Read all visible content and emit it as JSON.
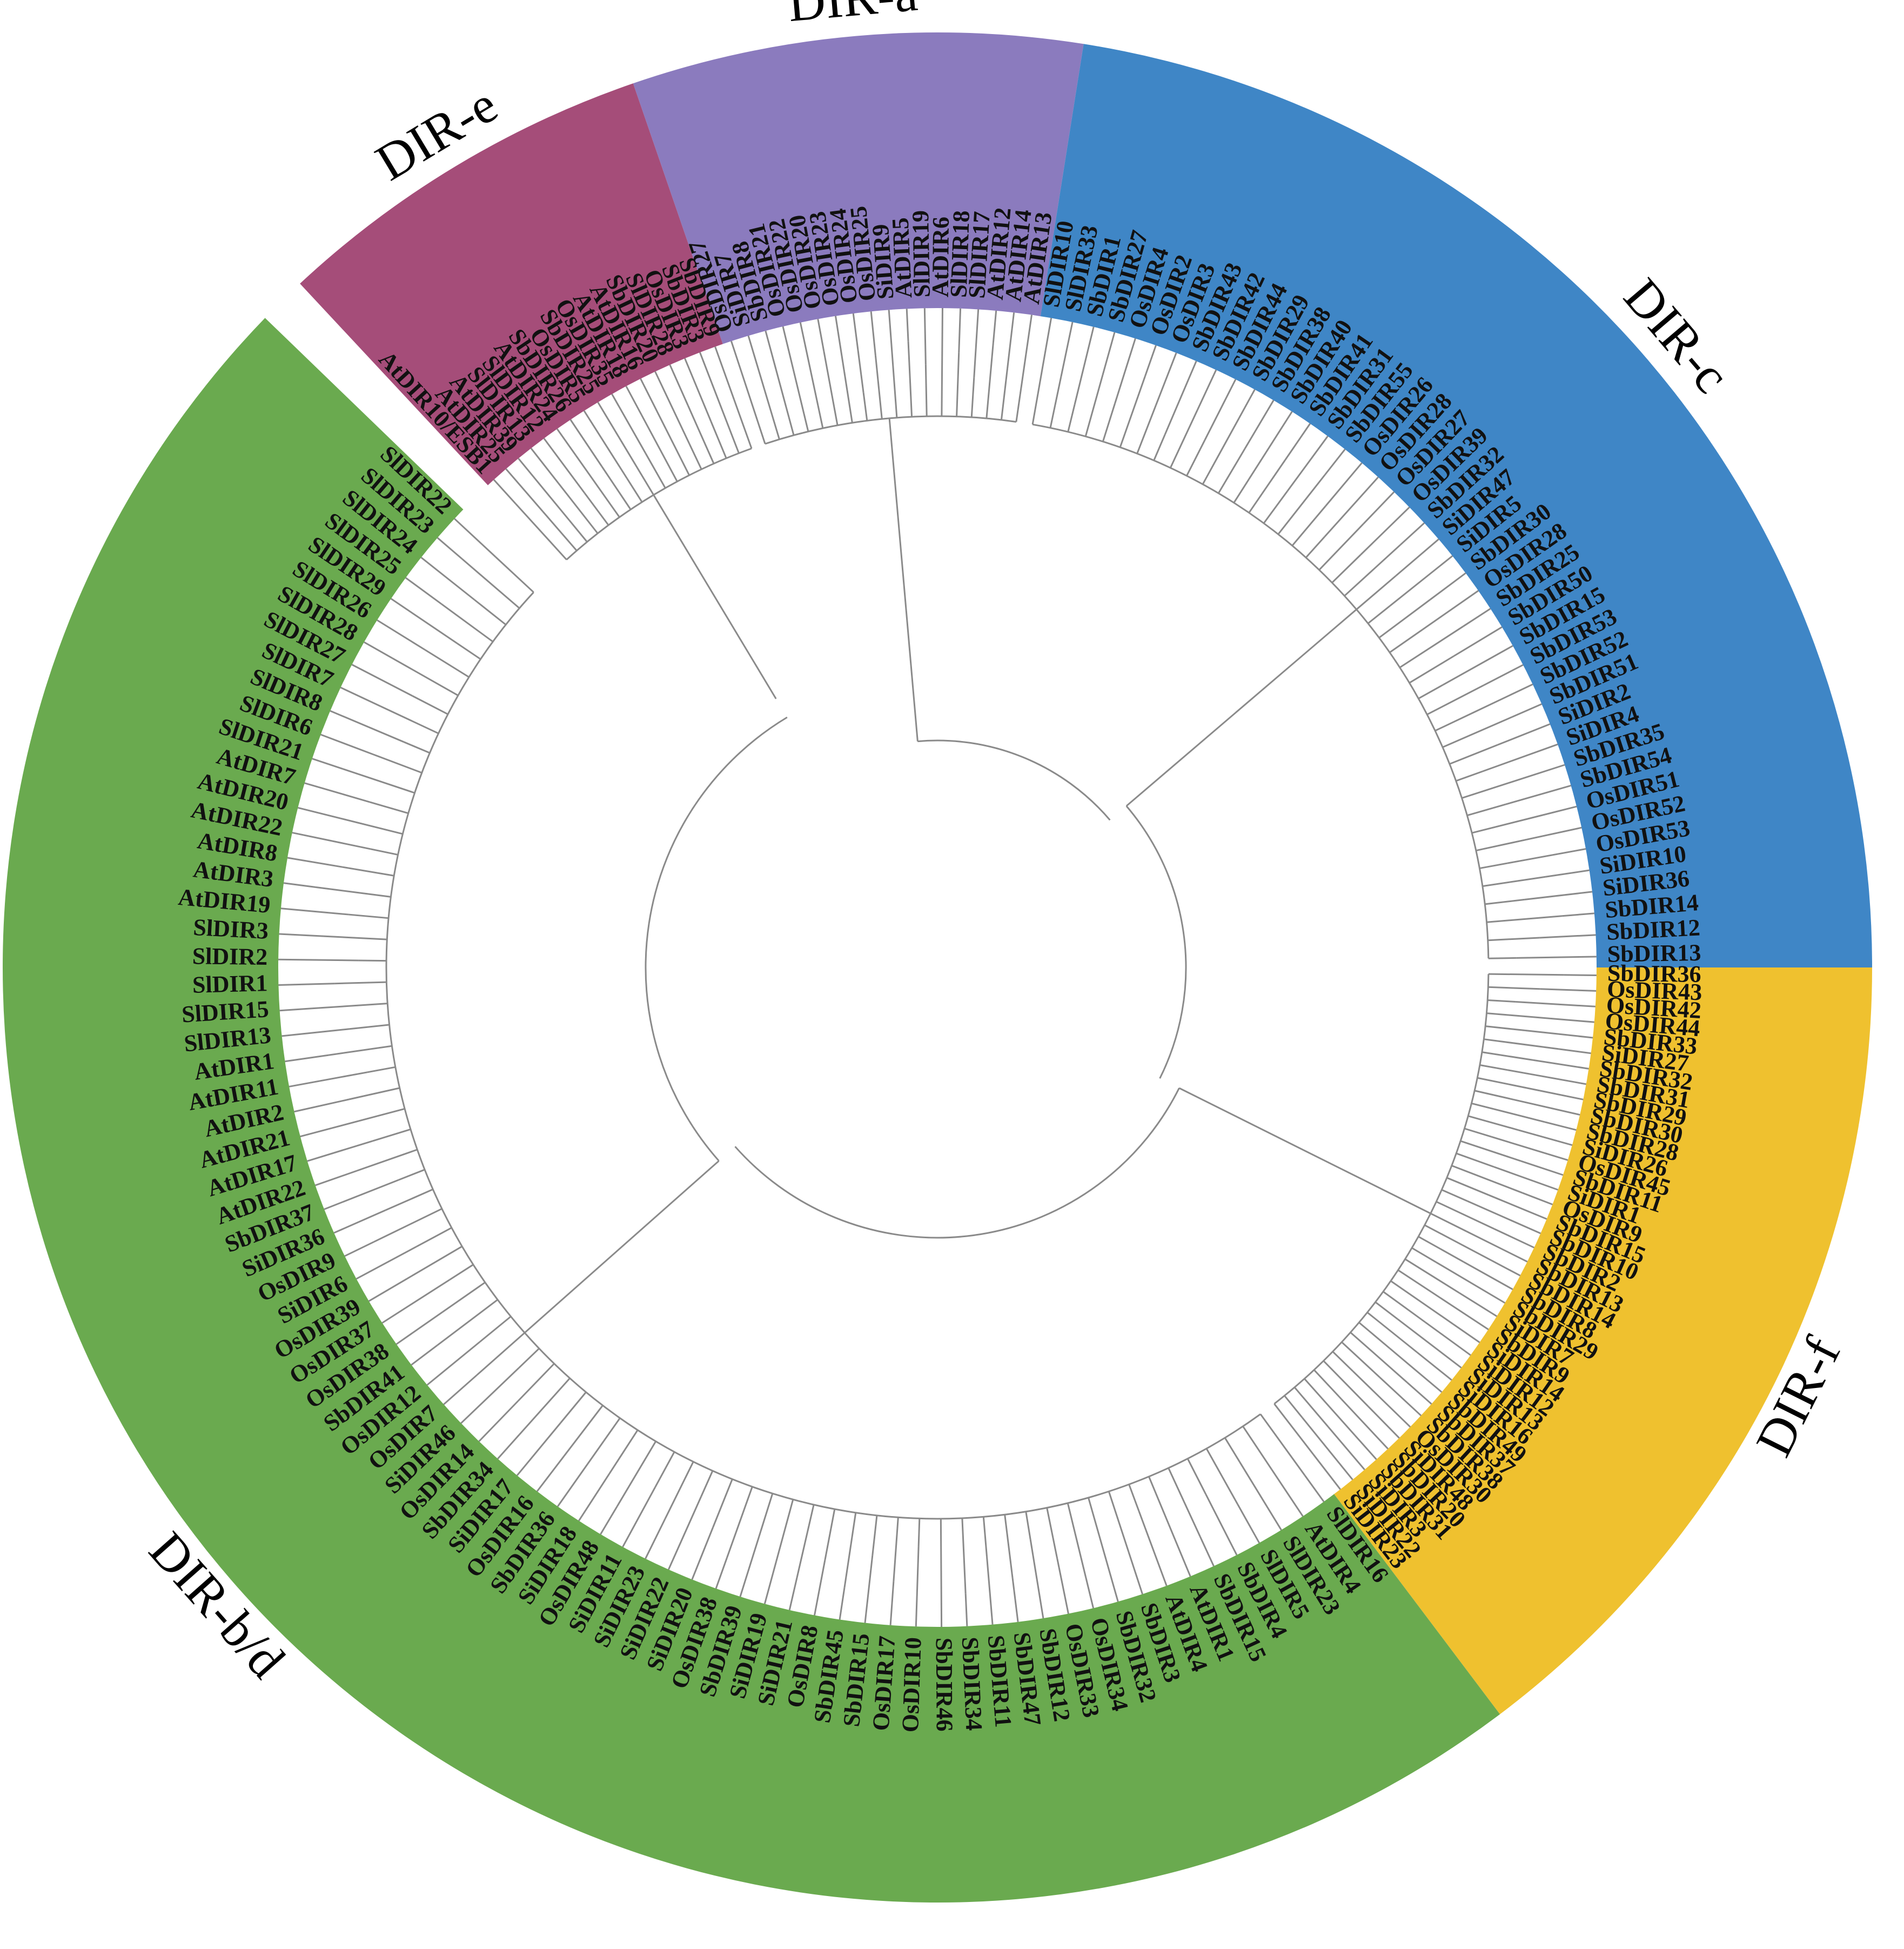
{
  "figure": {
    "clades": [
      {
        "name": "DIR-a",
        "color": "#8B7BBE",
        "leaves": [
          "OsDIR27",
          "SiDIR7",
          "SbDIR8",
          "OsDIR21",
          "OsDIR22",
          "OsDIR20",
          "OsDIR23",
          "OsDIR24",
          "OsDIR25",
          "SiDIR9",
          "AtDIR5",
          "SlDIR19",
          "AtDIR6",
          "SlDIR18",
          "SlDIR17",
          "AtDIR12",
          "AtDIR14",
          "AtDIR13"
        ]
      },
      {
        "name": "DIR-c",
        "color": "#3F86C6",
        "leaves": [
          "SlDIR10",
          "SlDIR33",
          "SbDIR1",
          "SbDIR27",
          "OsDIR4",
          "OsDIR2",
          "OsDIR3",
          "SbDIR43",
          "SbDIR42",
          "SbDIR44",
          "SbDIR29",
          "SbDIR38",
          "SbDIR40",
          "SbDIR41",
          "SbDIR31",
          "SbDIR55",
          "OsDIR26",
          "OsDIR28",
          "OsDIR27",
          "OsDIR39",
          "SbDIR32",
          "SiDIR47",
          "SiDIR5",
          "SbDIR30",
          "OsDIR28",
          "SbDIR25",
          "SbDIR50",
          "SbDIR15",
          "SbDIR53",
          "SbDIR52",
          "SbDIR51",
          "SiDIR2",
          "SiDIR4",
          "SbDIR35",
          "SbDIR54",
          "OsDIR51",
          "OsDIR52",
          "OsDIR53",
          "SiDIR10",
          "SiDIR36",
          "SbDIR14",
          "SbDIR12",
          "SbDIR13"
        ]
      },
      {
        "name": "DIR-f",
        "color": "#EFC12F",
        "leaves": [
          "SbDIR36",
          "OsDIR43",
          "OsDIR42",
          "OsDIR44",
          "SbDIR33",
          "SiDIR27",
          "SbDIR32",
          "SbDIR31",
          "SbDIR29",
          "SbDIR30",
          "SbDIR28",
          "SiDIR26",
          "OsDIR45",
          "SbDIR11",
          "SiDIR1",
          "OsDIR9",
          "SbDIR15",
          "SbDIR10",
          "SbDIR2",
          "SbDIR13",
          "SbDIR14",
          "SbDIR8",
          "SbDIR29",
          "SiDIR7",
          "SbDIR9",
          "SiDIR14",
          "SiDIR12",
          "SiDIR13",
          "SiDIR16",
          "SbDIR49",
          "SbDIR37",
          "SbDIR38",
          "OsDIR30",
          "SiDIR48",
          "SbDIR20",
          "SbDIR31",
          "SiDIR3",
          "SiDIR22",
          "SiDIR23"
        ]
      },
      {
        "name": "DIR-b/d",
        "color": "#6AAA4F",
        "leaves": [
          "SlDIR16",
          "AtDIR4",
          "SlDIR23",
          "SlDIR5",
          "SbDIR4",
          "SbDIR15",
          "AtDIR1",
          "AtDIR4",
          "SbDIR3",
          "SbDIR32",
          "OsDIR34",
          "OsDIR33",
          "SbDIR12",
          "SbDIR47",
          "SbDIR11",
          "SbDIR34",
          "SbDIR46",
          "OsDIR10",
          "OsDIR17",
          "SbDIR15",
          "SbDIR45",
          "OsDIR8",
          "SiDIR21",
          "SiDIR19",
          "SbDIR39",
          "OsDIR38",
          "SiDIR20",
          "SiDIR22",
          "SiDIR23",
          "SiDIR11",
          "OsDIR48",
          "SiDIR18",
          "SbDIR36",
          "OsDIR16",
          "SiDIR17",
          "SbDIR34",
          "OsDIR14",
          "SiDIR46",
          "OsDIR7",
          "OsDIR12",
          "SbDIR41",
          "OsDIR38",
          "OsDIR37",
          "OsDIR39",
          "SiDIR6",
          "OsDIR9",
          "SiDIR36",
          "SbDIR37",
          "AtDIR22",
          "AtDIR17",
          "AtDIR21",
          "AtDIR2",
          "AtDIR11",
          "AtDIR1",
          "SlDIR13",
          "SlDIR15",
          "SlDIR1",
          "SlDIR2",
          "SlDIR3",
          "AtDIR19",
          "AtDIR3",
          "AtDIR8",
          "AtDIR22",
          "AtDIR20",
          "AtDIR7",
          "SlDIR21",
          "SlDIR6",
          "SlDIR8",
          "SlDIR7",
          "SlDIR27",
          "SlDIR28",
          "SlDIR26",
          "SlDIR29",
          "SlDIR25",
          "SlDIR24",
          "SlDIR23",
          "SlDIR22"
        ]
      },
      {
        "name": "DIR-e",
        "color": "#A54D79",
        "leaves": [
          "AtDIR10/ESB1",
          "AtDIR25",
          "AtDIR39",
          "SlDIR13",
          "SlDIR12",
          "AtDIR24",
          "SbDIR26",
          "OsDIR5",
          "SbDIR25",
          "OsDIR35",
          "AtDIR18",
          "AtDIR16",
          "SbDIR20",
          "SlDIR28",
          "OsDIR3",
          "SbDIR3",
          "SbDIR9"
        ]
      }
    ]
  }
}
